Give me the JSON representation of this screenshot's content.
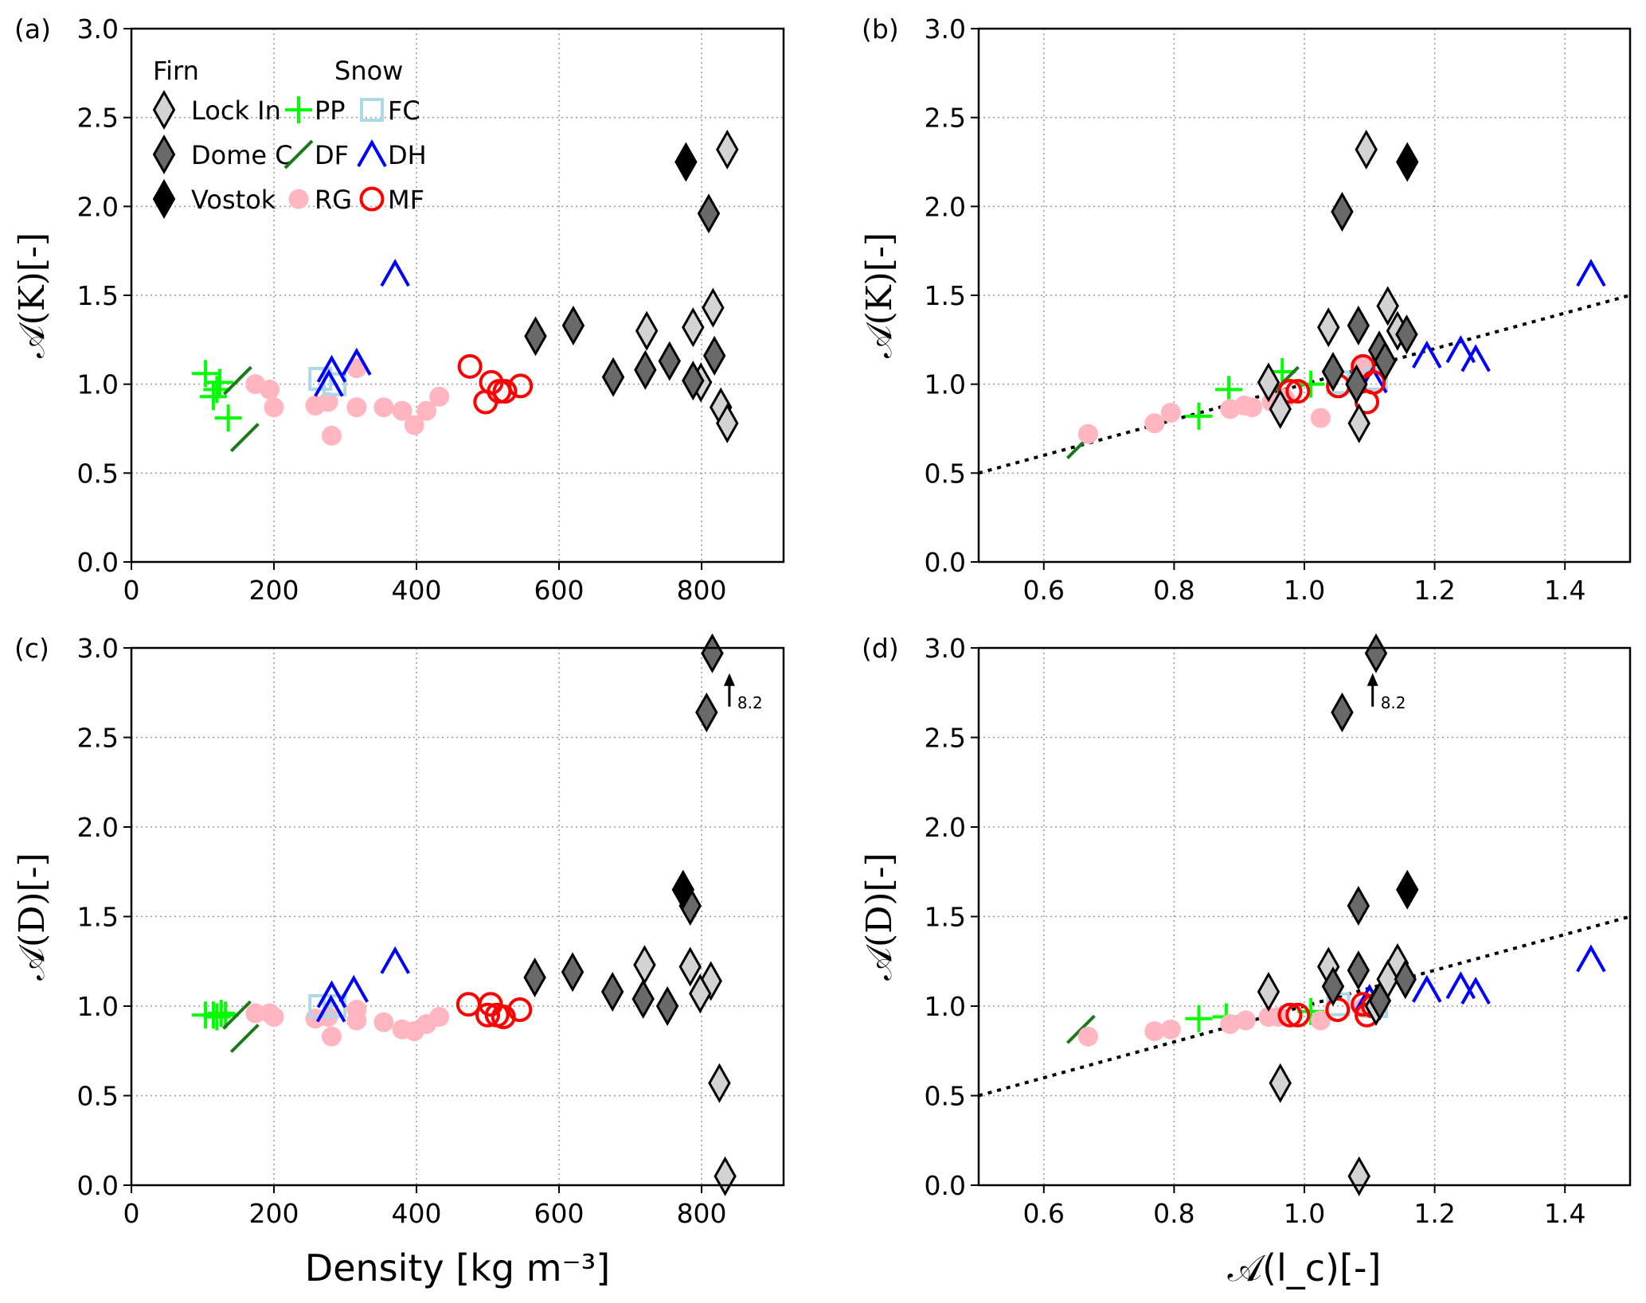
{
  "chart_data": [
    {
      "panel": "(a)",
      "type": "scatter",
      "xlabel": "",
      "ylabel": "𝒜(K)[-]",
      "xlim": [
        0,
        915
      ],
      "ylim": [
        0,
        3.0
      ],
      "xticks": [
        "0",
        "200",
        "400",
        "600",
        "800"
      ],
      "xtick_values": [
        0,
        200,
        400,
        600,
        800
      ],
      "yticks": [
        "0.0",
        "0.5",
        "1.0",
        "1.5",
        "2.0",
        "2.5",
        "3.0"
      ],
      "ytick_values": [
        0,
        0.5,
        1.0,
        1.5,
        2.0,
        2.5,
        3.0
      ],
      "grid": true,
      "legend": {
        "placement": "top-left",
        "firn_title": "Firn",
        "snow_title": "Snow",
        "entries": [
          {
            "key": "lockin",
            "label": "Lock In"
          },
          {
            "key": "domec",
            "label": "Dome C"
          },
          {
            "key": "vostok",
            "label": "Vostok"
          },
          {
            "key": "PP",
            "label": "PP"
          },
          {
            "key": "DF",
            "label": "DF"
          },
          {
            "key": "RG",
            "label": "RG"
          },
          {
            "key": "FC",
            "label": "FC"
          },
          {
            "key": "DH",
            "label": "DH"
          },
          {
            "key": "MF",
            "label": "MF"
          }
        ]
      },
      "series": [
        {
          "name": "PP",
          "points": [
            [
              104,
              1.06
            ],
            [
              124,
              1.01
            ],
            [
              120,
              0.97
            ],
            [
              115,
              0.93
            ],
            [
              136,
              0.81
            ]
          ]
        },
        {
          "name": "DF",
          "points": [
            [
              149,
              1.02
            ],
            [
              159,
              0.7
            ]
          ]
        },
        {
          "name": "RG",
          "points": [
            [
              174,
              1.0
            ],
            [
              194,
              0.97
            ],
            [
              200,
              0.87
            ],
            [
              258,
              0.88
            ],
            [
              276,
              0.9
            ],
            [
              281,
              0.71
            ],
            [
              316,
              1.09
            ],
            [
              316,
              0.87
            ],
            [
              354,
              0.87
            ],
            [
              380,
              0.85
            ],
            [
              397,
              0.77
            ],
            [
              414,
              0.85
            ],
            [
              432,
              0.93
            ]
          ]
        },
        {
          "name": "FC",
          "points": [
            [
              265,
              1.03
            ],
            [
              285,
              1.0
            ]
          ]
        },
        {
          "name": "DH",
          "points": [
            [
              281,
              1.08
            ],
            [
              316,
              1.12
            ],
            [
              277,
              1.0
            ],
            [
              370,
              1.62
            ]
          ]
        },
        {
          "name": "MF",
          "points": [
            [
              475,
              1.1
            ],
            [
              505,
              1.01
            ],
            [
              524,
              0.96
            ],
            [
              546,
              0.99
            ],
            [
              497,
              0.9
            ],
            [
              516,
              0.96
            ]
          ]
        },
        {
          "name": "Lock In",
          "points": [
            [
              723,
              1.3
            ],
            [
              788,
              1.32
            ],
            [
              816,
              1.43
            ],
            [
              799,
              1.01
            ],
            [
              827,
              0.87
            ],
            [
              836,
              0.78
            ],
            [
              836,
              2.32
            ]
          ]
        },
        {
          "name": "Dome C",
          "points": [
            [
              567,
              1.27
            ],
            [
              620,
              1.33
            ],
            [
              676,
              1.04
            ],
            [
              721,
              1.08
            ],
            [
              755,
              1.13
            ],
            [
              788,
              1.02
            ],
            [
              818,
              1.16
            ],
            [
              810,
              1.96
            ]
          ]
        },
        {
          "name": "Vostok",
          "points": [
            [
              778,
              2.25
            ]
          ]
        }
      ]
    },
    {
      "panel": "(b)",
      "type": "scatter",
      "xlabel": "",
      "ylabel": "𝒜(K)[-]",
      "xlim": [
        0.5,
        1.5
      ],
      "ylim": [
        0,
        3.0
      ],
      "xticks": [
        "0.6",
        "0.8",
        "1.0",
        "1.2",
        "1.4"
      ],
      "xtick_values": [
        0.6,
        0.8,
        1.0,
        1.2,
        1.4
      ],
      "yticks": [
        "0.0",
        "0.5",
        "1.0",
        "1.5",
        "2.0",
        "2.5",
        "3.0"
      ],
      "ytick_values": [
        0,
        0.5,
        1.0,
        1.5,
        2.0,
        2.5,
        3.0
      ],
      "grid": true,
      "fit_line": {
        "style": "dotted",
        "x": [
          0.5,
          1.5
        ],
        "y": [
          0.5,
          1.5
        ]
      },
      "series": [
        {
          "name": "DF",
          "points": [
            [
              0.657,
              0.66
            ],
            [
              0.97,
              1.02
            ]
          ]
        },
        {
          "name": "RG",
          "points": [
            [
              0.668,
              0.72
            ],
            [
              0.77,
              0.78
            ],
            [
              0.795,
              0.84
            ],
            [
              0.886,
              0.86
            ],
            [
              0.908,
              0.88
            ],
            [
              0.92,
              0.87
            ],
            [
              0.95,
              0.9
            ],
            [
              0.97,
              0.92
            ],
            [
              1.025,
              0.81
            ],
            [
              1.09,
              1.1
            ]
          ]
        },
        {
          "name": "PP",
          "points": [
            [
              0.838,
              0.82
            ],
            [
              0.884,
              0.97
            ],
            [
              0.966,
              1.07
            ],
            [
              1.01,
              1.0
            ]
          ]
        },
        {
          "name": "FC",
          "points": [
            [
              1.052,
              1.01
            ],
            [
              1.11,
              1.03
            ]
          ]
        },
        {
          "name": "DH",
          "points": [
            [
              1.105,
              1.02
            ],
            [
              1.188,
              1.16
            ],
            [
              1.24,
              1.19
            ],
            [
              1.263,
              1.14
            ],
            [
              1.44,
              1.62
            ]
          ]
        },
        {
          "name": "MF",
          "points": [
            [
              0.978,
              0.96
            ],
            [
              0.99,
              0.96
            ],
            [
              1.052,
              0.99
            ],
            [
              1.09,
              1.1
            ],
            [
              1.106,
              1.01
            ],
            [
              1.096,
              0.9
            ]
          ]
        },
        {
          "name": "Lock In",
          "points": [
            [
              1.095,
              2.32
            ],
            [
              1.037,
              1.32
            ],
            [
              1.128,
              1.44
            ],
            [
              1.143,
              1.3
            ],
            [
              1.084,
              0.78
            ],
            [
              0.945,
              1.01
            ],
            [
              0.963,
              0.86
            ]
          ]
        },
        {
          "name": "Dome C",
          "points": [
            [
              1.058,
              1.97
            ],
            [
              1.083,
              1.33
            ],
            [
              1.157,
              1.28
            ],
            [
              1.115,
              1.19
            ],
            [
              1.044,
              1.07
            ],
            [
              1.124,
              1.13
            ],
            [
              1.08,
              1.0
            ]
          ]
        },
        {
          "name": "Vostok",
          "points": [
            [
              1.158,
              2.25
            ]
          ]
        }
      ]
    },
    {
      "panel": "(c)",
      "type": "scatter",
      "xlabel": "Density [kg m⁻³]",
      "ylabel": "𝒜(D)[-]",
      "xlim": [
        0,
        915
      ],
      "ylim": [
        0,
        3.0
      ],
      "xticks": [
        "0",
        "200",
        "400",
        "600",
        "800"
      ],
      "xtick_values": [
        0,
        200,
        400,
        600,
        800
      ],
      "yticks": [
        "0.0",
        "0.5",
        "1.0",
        "1.5",
        "2.0",
        "2.5",
        "3.0"
      ],
      "ytick_values": [
        0,
        0.5,
        1.0,
        1.5,
        2.0,
        2.5,
        3.0
      ],
      "grid": true,
      "annotation": {
        "text": "8.2",
        "arrow": "up",
        "x": 830,
        "y": 2.85
      },
      "series": [
        {
          "name": "PP",
          "points": [
            [
              104,
              0.95
            ],
            [
              115,
              0.95
            ],
            [
              120,
              0.94
            ],
            [
              126,
              0.96
            ],
            [
              132,
              0.95
            ]
          ]
        },
        {
          "name": "DF",
          "points": [
            [
              148,
              0.95
            ],
            [
              159,
              0.82
            ]
          ]
        },
        {
          "name": "RG",
          "points": [
            [
              174,
              0.96
            ],
            [
              194,
              0.96
            ],
            [
              200,
              0.94
            ],
            [
              258,
              0.93
            ],
            [
              276,
              0.94
            ],
            [
              281,
              0.83
            ],
            [
              316,
              0.98
            ],
            [
              316,
              0.92
            ],
            [
              354,
              0.91
            ],
            [
              380,
              0.87
            ],
            [
              397,
              0.86
            ],
            [
              414,
              0.9
            ],
            [
              432,
              0.94
            ]
          ]
        },
        {
          "name": "FC",
          "points": [
            [
              265,
              1.0
            ],
            [
              285,
              1.0
            ]
          ]
        },
        {
          "name": "DH",
          "points": [
            [
              281,
              1.06
            ],
            [
              312,
              1.09
            ],
            [
              280,
              0.98
            ],
            [
              370,
              1.25
            ]
          ]
        },
        {
          "name": "MF",
          "points": [
            [
              473,
              1.01
            ],
            [
              504,
              1.01
            ],
            [
              500,
              0.95
            ],
            [
              513,
              0.95
            ],
            [
              522,
              0.94
            ],
            [
              545,
              0.98
            ]
          ]
        },
        {
          "name": "Lock In",
          "points": [
            [
              720,
              1.23
            ],
            [
              784,
              1.22
            ],
            [
              813,
              1.14
            ],
            [
              798,
              1.07
            ],
            [
              825,
              0.57
            ],
            [
              833,
              0.05
            ]
          ]
        },
        {
          "name": "Dome C",
          "points": [
            [
              566,
              1.16
            ],
            [
              619,
              1.19
            ],
            [
              675,
              1.08
            ],
            [
              718,
              1.04
            ],
            [
              752,
              1.0
            ],
            [
              784,
              1.56
            ],
            [
              807,
              2.64
            ],
            [
              815,
              2.97
            ]
          ]
        },
        {
          "name": "Vostok",
          "points": [
            [
              774,
              1.65
            ]
          ]
        }
      ]
    },
    {
      "panel": "(d)",
      "type": "scatter",
      "xlabel": "𝒜(l_c)[-]",
      "ylabel": "𝒜(D)[-]",
      "xlim": [
        0.5,
        1.5
      ],
      "ylim": [
        0,
        3.0
      ],
      "xticks": [
        "0.6",
        "0.8",
        "1.0",
        "1.2",
        "1.4"
      ],
      "xtick_values": [
        0.6,
        0.8,
        1.0,
        1.2,
        1.4
      ],
      "yticks": [
        "0.0",
        "0.5",
        "1.0",
        "1.5",
        "2.0",
        "2.5",
        "3.0"
      ],
      "ytick_values": [
        0,
        0.5,
        1.0,
        1.5,
        2.0,
        2.5,
        3.0
      ],
      "grid": true,
      "fit_line": {
        "style": "dotted",
        "x": [
          0.5,
          1.5
        ],
        "y": [
          0.5,
          1.5
        ]
      },
      "annotation": {
        "text": "8.2",
        "arrow": "up",
        "x": 1.095,
        "y": 2.85
      },
      "series": [
        {
          "name": "DF",
          "points": [
            [
              0.657,
              0.87
            ]
          ]
        },
        {
          "name": "RG",
          "points": [
            [
              0.668,
              0.83
            ],
            [
              0.77,
              0.86
            ],
            [
              0.795,
              0.87
            ],
            [
              0.886,
              0.9
            ],
            [
              0.91,
              0.92
            ],
            [
              0.945,
              0.94
            ],
            [
              0.96,
              0.94
            ],
            [
              1.025,
              0.92
            ],
            [
              1.09,
              0.99
            ]
          ]
        },
        {
          "name": "PP",
          "points": [
            [
              0.838,
              0.93
            ],
            [
              0.88,
              0.94
            ],
            [
              1.01,
              0.97
            ]
          ]
        },
        {
          "name": "FC",
          "points": [
            [
              1.052,
              1.01
            ],
            [
              1.11,
              1.0
            ]
          ]
        },
        {
          "name": "DH",
          "points": [
            [
              1.1,
              1.04
            ],
            [
              1.188,
              1.09
            ],
            [
              1.24,
              1.11
            ],
            [
              1.263,
              1.08
            ],
            [
              1.44,
              1.26
            ]
          ]
        },
        {
          "name": "MF",
          "points": [
            [
              0.978,
              0.95
            ],
            [
              0.99,
              0.95
            ],
            [
              1.051,
              0.98
            ],
            [
              1.09,
              1.01
            ],
            [
              1.106,
              1.0
            ],
            [
              1.096,
              0.95
            ]
          ]
        },
        {
          "name": "Lock In",
          "points": [
            [
              0.945,
              1.08
            ],
            [
              1.037,
              1.22
            ],
            [
              1.143,
              1.24
            ],
            [
              1.128,
              1.15
            ],
            [
              1.11,
              1.0
            ],
            [
              0.963,
              0.57
            ],
            [
              1.084,
              0.05
            ]
          ]
        },
        {
          "name": "Dome C",
          "points": [
            [
              1.083,
              1.2
            ],
            [
              1.044,
              1.11
            ],
            [
              1.155,
              1.15
            ],
            [
              1.116,
              1.03
            ],
            [
              1.083,
              1.56
            ],
            [
              1.058,
              2.64
            ],
            [
              1.11,
              2.97
            ]
          ]
        },
        {
          "name": "Vostok",
          "points": [
            [
              1.158,
              1.65
            ]
          ]
        }
      ]
    }
  ],
  "colors": {
    "PP": "#00ff00",
    "DF": "#1a7a1a",
    "RG": "#ffb6c1",
    "FC": "#add8e6",
    "DH": "#0000ff",
    "MF": "#ff0000",
    "lockin": "#d3d3d3",
    "domec": "#696969",
    "vostok": "#000000"
  }
}
